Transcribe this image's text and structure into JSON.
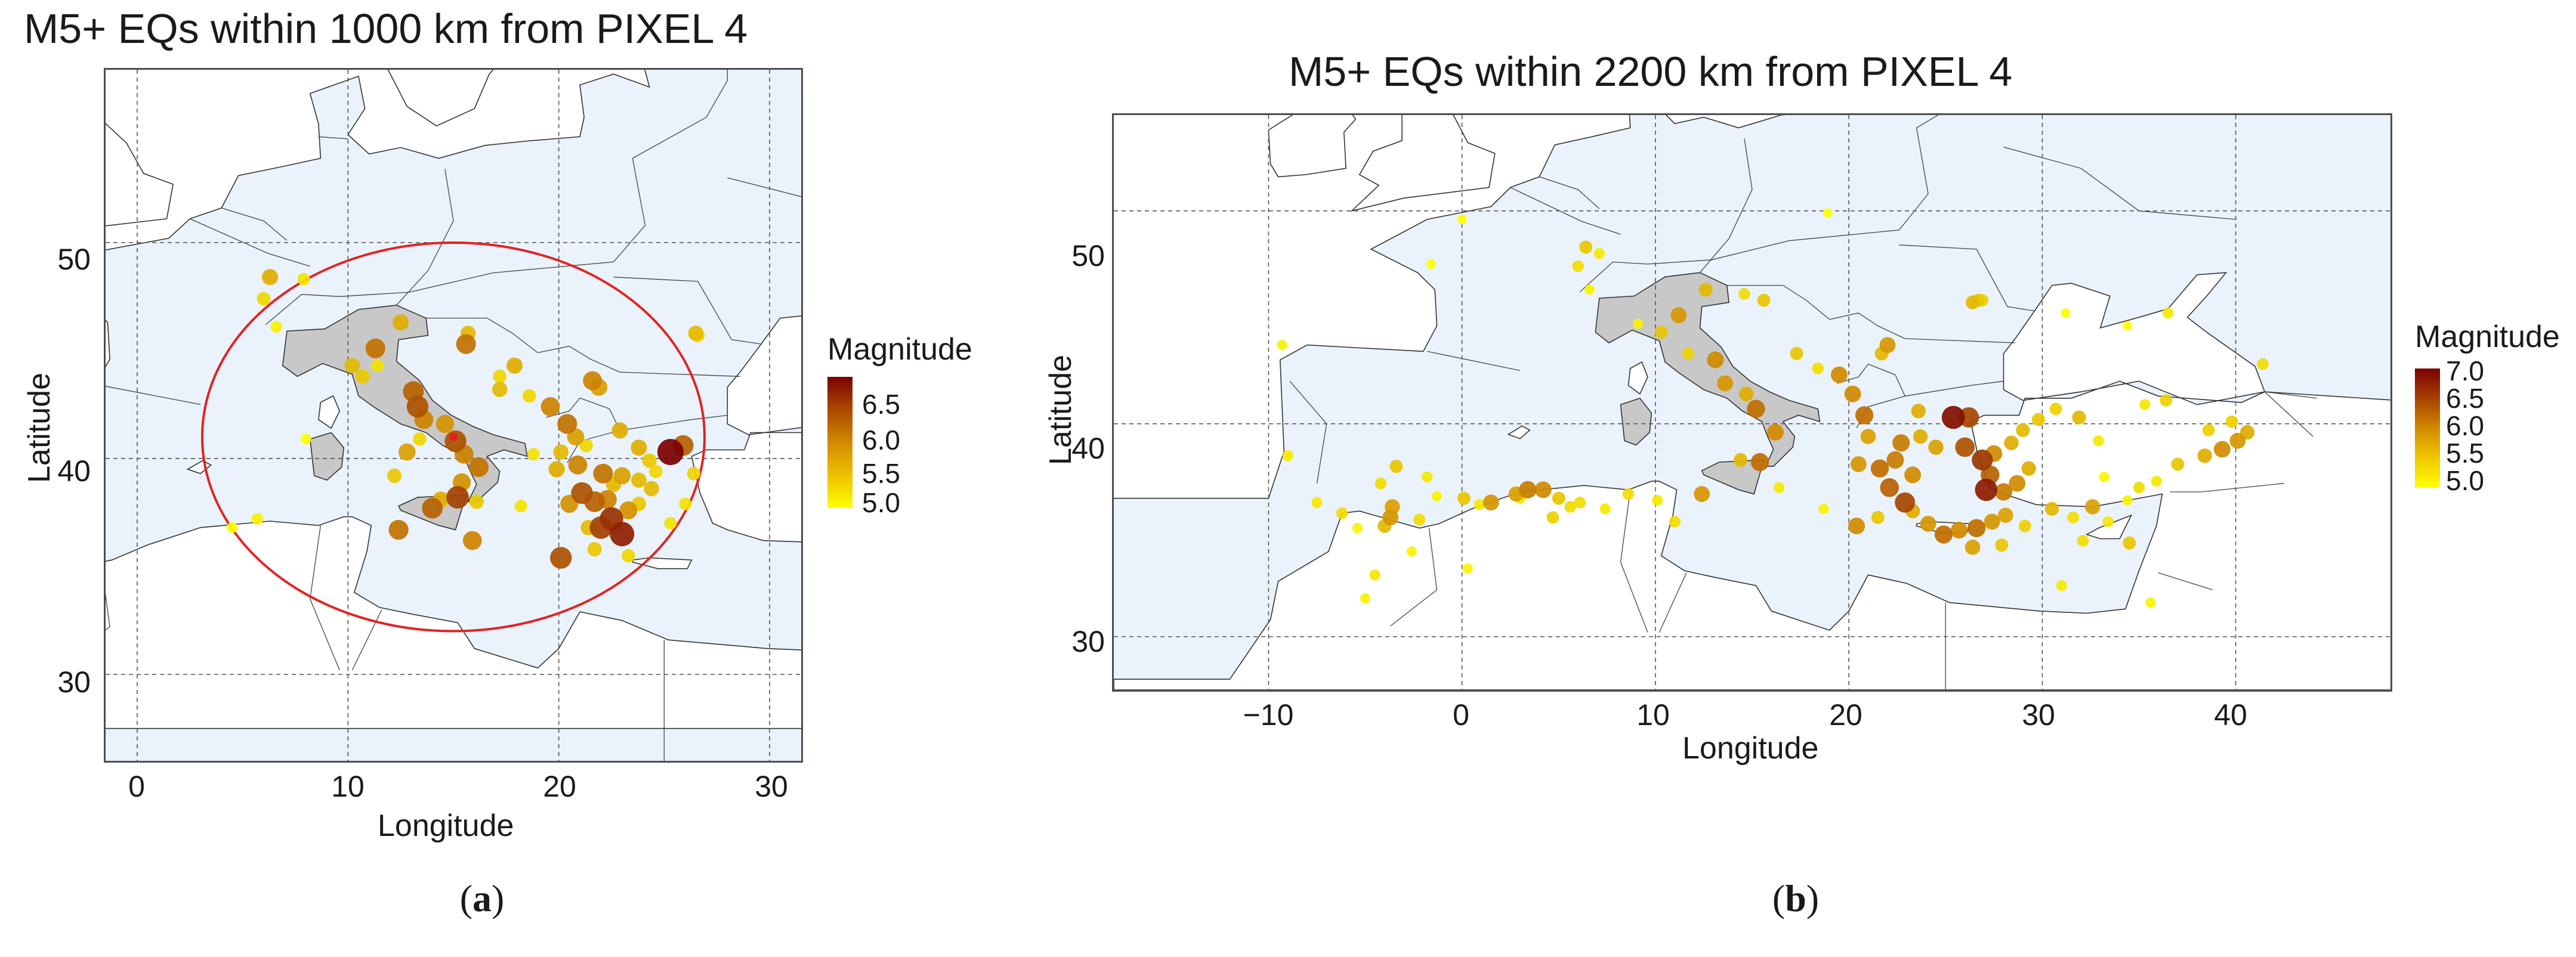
{
  "panel_a": {
    "title": "M5+ EQs within 1000 km from PIXEL 4",
    "xlabel": "Longitude",
    "ylabel": "Latitude",
    "x_ticks": [
      "0",
      "10",
      "20",
      "30"
    ],
    "y_ticks": [
      "30",
      "40",
      "50"
    ],
    "legend_title": "Magnitude",
    "legend_ticks": [
      "6.5",
      "6.0",
      "5.5",
      "5.0"
    ],
    "caption_open": "(",
    "caption_letter": "a",
    "caption_close": ")"
  },
  "panel_b": {
    "title": "M5+ EQs within 2200 km from PIXEL 4",
    "xlabel": "Longitude",
    "ylabel": "Latitude",
    "x_ticks": [
      "−10",
      "0",
      "10",
      "20",
      "30",
      "40"
    ],
    "y_ticks": [
      "30",
      "40",
      "50"
    ],
    "legend_title": "Magnitude",
    "legend_ticks": [
      "7.0",
      "6.5",
      "6.0",
      "5.5",
      "5.0"
    ],
    "caption_open": "(",
    "caption_letter": "b",
    "caption_close": ")"
  },
  "colors": {
    "sea": "#eaf3fb",
    "land": "#ffffff",
    "italy": "#c8c8c8",
    "circle": "#e32222",
    "mag_low": "#ffff00",
    "mag_mid": "#d18a00",
    "mag_high": "#7a0000"
  },
  "chart_data": [
    {
      "type": "scatter",
      "title": "M5+ EQs within 1000 km from PIXEL 4",
      "xlabel": "Longitude",
      "ylabel": "Latitude",
      "xlim": [
        -1.5,
        31.5
      ],
      "ylim": [
        26,
        58
      ],
      "color_scale": {
        "name": "Magnitude",
        "range": [
          5.0,
          6.7
        ]
      },
      "station": {
        "lon": 15.0,
        "lat": 41.0
      },
      "radius_km": 1000,
      "points": [
        [
          6.0,
          47.4,
          5.3
        ],
        [
          6.3,
          48.4,
          5.6
        ],
        [
          7.9,
          48.3,
          5.2
        ],
        [
          6.6,
          46.1,
          5.1
        ],
        [
          8.0,
          40.9,
          5.0
        ],
        [
          10.2,
          44.3,
          5.5
        ],
        [
          11.3,
          45.1,
          6.0
        ],
        [
          12.5,
          46.3,
          5.6
        ],
        [
          10.7,
          43.8,
          5.4
        ],
        [
          11.4,
          44.3,
          5.2
        ],
        [
          13.1,
          43.1,
          6.1
        ],
        [
          13.3,
          42.4,
          6.2
        ],
        [
          13.6,
          41.8,
          5.9
        ],
        [
          14.6,
          41.6,
          5.8
        ],
        [
          15.1,
          40.8,
          6.2
        ],
        [
          15.5,
          40.2,
          5.9
        ],
        [
          16.2,
          39.6,
          6.0
        ],
        [
          15.2,
          38.2,
          6.3
        ],
        [
          15.4,
          38.9,
          5.8
        ],
        [
          14.4,
          38.1,
          5.6
        ],
        [
          12.2,
          39.2,
          5.4
        ],
        [
          12.8,
          40.3,
          5.7
        ],
        [
          13.4,
          40.9,
          5.3
        ],
        [
          14.0,
          37.7,
          6.1
        ],
        [
          12.4,
          36.7,
          6.0
        ],
        [
          15.9,
          36.2,
          5.9
        ],
        [
          16.1,
          38.0,
          5.4
        ],
        [
          15.7,
          45.8,
          5.5
        ],
        [
          15.6,
          45.3,
          6.0
        ],
        [
          17.2,
          43.2,
          5.5
        ],
        [
          18.6,
          42.9,
          5.3
        ],
        [
          17.9,
          44.3,
          5.6
        ],
        [
          19.6,
          42.4,
          5.9
        ],
        [
          20.4,
          41.6,
          6.0
        ],
        [
          20.8,
          41.0,
          5.7
        ],
        [
          21.3,
          40.6,
          5.3
        ],
        [
          20.9,
          39.7,
          5.9
        ],
        [
          19.9,
          39.5,
          5.6
        ],
        [
          21.1,
          38.4,
          6.2
        ],
        [
          20.5,
          37.9,
          5.8
        ],
        [
          21.7,
          38.0,
          6.1
        ],
        [
          22.3,
          38.1,
          5.9
        ],
        [
          22.5,
          37.2,
          6.4
        ],
        [
          22.0,
          36.8,
          6.3
        ],
        [
          23.0,
          36.5,
          6.5
        ],
        [
          23.3,
          37.6,
          5.8
        ],
        [
          23.8,
          37.9,
          5.4
        ],
        [
          22.6,
          38.8,
          5.5
        ],
        [
          22.1,
          39.3,
          6.0
        ],
        [
          23.0,
          39.2,
          5.7
        ],
        [
          24.4,
          38.6,
          5.5
        ],
        [
          24.6,
          39.4,
          5.3
        ],
        [
          23.8,
          40.5,
          5.6
        ],
        [
          24.3,
          39.9,
          5.4
        ],
        [
          25.3,
          40.3,
          6.7
        ],
        [
          25.9,
          40.6,
          6.1
        ],
        [
          26.4,
          39.3,
          5.3
        ],
        [
          26.0,
          37.9,
          5.2
        ],
        [
          23.8,
          39.0,
          5.5
        ],
        [
          21.4,
          36.8,
          5.5
        ],
        [
          20.1,
          35.4,
          6.2
        ],
        [
          21.7,
          35.8,
          5.4
        ],
        [
          23.3,
          35.5,
          5.3
        ],
        [
          21.6,
          43.6,
          5.9
        ],
        [
          21.9,
          43.3,
          5.7
        ],
        [
          25.3,
          37.0,
          5.2
        ],
        [
          26.5,
          45.8,
          5.5
        ],
        [
          26.6,
          45.7,
          5.3
        ],
        [
          5.7,
          37.2,
          5.1
        ],
        [
          4.5,
          36.8,
          5.0
        ],
        [
          18.2,
          37.8,
          5.2
        ],
        [
          22.9,
          41.3,
          5.6
        ],
        [
          20.1,
          40.3,
          5.5
        ],
        [
          18.8,
          40.2,
          5.2
        ],
        [
          17.2,
          43.8,
          5.3
        ]
      ]
    },
    {
      "type": "scatter",
      "title": "M5+ EQs within 2200 km from PIXEL 4",
      "xlabel": "Longitude",
      "ylabel": "Latitude",
      "xlim": [
        -18,
        48
      ],
      "ylim": [
        27.5,
        54.5
      ],
      "color_scale": {
        "name": "Magnitude",
        "range": [
          5.0,
          7.0
        ]
      },
      "points": [
        [
          -9.3,
          43.7,
          5.1
        ],
        [
          -9.0,
          38.5,
          5.2
        ],
        [
          -7.5,
          36.3,
          5.2
        ],
        [
          -6.2,
          35.8,
          5.3
        ],
        [
          -5.4,
          35.1,
          5.1
        ],
        [
          -4.0,
          35.2,
          5.6
        ],
        [
          -3.7,
          35.6,
          5.9
        ],
        [
          -3.6,
          36.1,
          5.8
        ],
        [
          -2.2,
          35.5,
          5.3
        ],
        [
          -2.6,
          34.0,
          5.1
        ],
        [
          -4.2,
          37.2,
          5.3
        ],
        [
          -3.4,
          38.0,
          5.5
        ],
        [
          -1.8,
          37.5,
          5.2
        ],
        [
          -1.3,
          36.6,
          5.1
        ],
        [
          0.1,
          36.5,
          5.5
        ],
        [
          0.9,
          36.2,
          5.2
        ],
        [
          1.5,
          36.3,
          5.9
        ],
        [
          2.8,
          36.7,
          5.8
        ],
        [
          3.4,
          36.9,
          6.1
        ],
        [
          4.2,
          36.9,
          6.0
        ],
        [
          5.0,
          36.5,
          5.5
        ],
        [
          5.6,
          36.1,
          5.3
        ],
        [
          3.0,
          36.5,
          5.2
        ],
        [
          4.7,
          35.6,
          5.4
        ],
        [
          6.1,
          36.3,
          5.3
        ],
        [
          7.4,
          36.0,
          5.2
        ],
        [
          8.6,
          36.7,
          5.3
        ],
        [
          10.1,
          36.4,
          5.2
        ],
        [
          11.0,
          35.4,
          5.3
        ],
        [
          -4.5,
          32.9,
          5.2
        ],
        [
          -5.0,
          31.8,
          5.1
        ],
        [
          0.3,
          33.2,
          5.1
        ],
        [
          6.0,
          47.4,
          5.3
        ],
        [
          6.4,
          48.3,
          5.5
        ],
        [
          7.1,
          48.0,
          5.2
        ],
        [
          -1.6,
          47.5,
          5.0
        ],
        [
          0.0,
          49.6,
          5.0
        ],
        [
          10.3,
          44.3,
          5.5
        ],
        [
          11.2,
          45.1,
          5.9
        ],
        [
          12.6,
          46.3,
          5.6
        ],
        [
          13.1,
          43.0,
          6.0
        ],
        [
          13.6,
          41.9,
          5.9
        ],
        [
          14.7,
          41.4,
          5.7
        ],
        [
          15.2,
          40.7,
          6.2
        ],
        [
          16.2,
          39.6,
          6.0
        ],
        [
          15.4,
          38.2,
          6.2
        ],
        [
          14.4,
          38.3,
          5.6
        ],
        [
          12.4,
          36.7,
          5.9
        ],
        [
          15.6,
          45.8,
          5.5
        ],
        [
          17.3,
          43.3,
          5.5
        ],
        [
          18.4,
          42.6,
          5.3
        ],
        [
          19.5,
          42.3,
          6.0
        ],
        [
          20.2,
          41.4,
          6.0
        ],
        [
          20.8,
          40.4,
          6.2
        ],
        [
          21.0,
          39.4,
          5.8
        ],
        [
          20.5,
          38.1,
          5.9
        ],
        [
          21.6,
          37.9,
          6.2
        ],
        [
          22.4,
          38.3,
          6.1
        ],
        [
          22.1,
          37.0,
          6.3
        ],
        [
          22.9,
          36.3,
          6.5
        ],
        [
          23.3,
          37.6,
          6.0
        ],
        [
          22.7,
          39.1,
          6.1
        ],
        [
          23.7,
          39.4,
          5.7
        ],
        [
          24.5,
          38.9,
          5.8
        ],
        [
          23.6,
          40.6,
          5.7
        ],
        [
          25.4,
          40.3,
          6.9
        ],
        [
          26.2,
          40.3,
          6.5
        ],
        [
          26.0,
          38.9,
          6.4
        ],
        [
          26.9,
          38.3,
          6.6
        ],
        [
          27.3,
          37.6,
          6.3
        ],
        [
          27.1,
          36.9,
          6.8
        ],
        [
          28.0,
          36.8,
          6.1
        ],
        [
          28.7,
          37.2,
          6.0
        ],
        [
          29.3,
          37.9,
          5.7
        ],
        [
          27.5,
          38.6,
          6.0
        ],
        [
          28.4,
          39.1,
          5.7
        ],
        [
          29.0,
          39.7,
          5.6
        ],
        [
          29.8,
          40.2,
          5.5
        ],
        [
          30.7,
          40.7,
          5.4
        ],
        [
          24.9,
          34.8,
          6.2
        ],
        [
          25.7,
          35.0,
          6.0
        ],
        [
          26.6,
          35.1,
          6.2
        ],
        [
          27.4,
          35.4,
          5.9
        ],
        [
          28.1,
          35.7,
          5.8
        ],
        [
          24.1,
          35.3,
          5.9
        ],
        [
          23.3,
          35.9,
          5.7
        ],
        [
          26.4,
          34.2,
          5.8
        ],
        [
          27.9,
          34.3,
          5.5
        ],
        [
          29.1,
          35.2,
          5.4
        ],
        [
          30.5,
          36.0,
          5.6
        ],
        [
          31.6,
          35.6,
          5.3
        ],
        [
          32.1,
          34.5,
          5.3
        ],
        [
          32.6,
          36.1,
          5.8
        ],
        [
          33.4,
          35.4,
          5.2
        ],
        [
          34.4,
          36.4,
          5.1
        ],
        [
          35.0,
          37.0,
          5.3
        ],
        [
          35.9,
          37.3,
          5.2
        ],
        [
          37.0,
          38.1,
          5.5
        ],
        [
          38.4,
          38.5,
          5.7
        ],
        [
          39.3,
          38.8,
          6.0
        ],
        [
          40.1,
          39.2,
          5.9
        ],
        [
          40.6,
          39.6,
          5.7
        ],
        [
          39.8,
          40.1,
          5.4
        ],
        [
          41.4,
          42.8,
          5.3
        ],
        [
          38.6,
          39.7,
          5.4
        ],
        [
          36.4,
          41.1,
          5.4
        ],
        [
          35.3,
          40.9,
          5.2
        ],
        [
          31.9,
          40.3,
          5.6
        ],
        [
          32.9,
          39.2,
          5.2
        ],
        [
          33.2,
          37.5,
          5.1
        ],
        [
          31.0,
          32.4,
          5.2
        ],
        [
          34.5,
          34.4,
          5.5
        ],
        [
          35.6,
          31.6,
          5.1
        ],
        [
          26.4,
          45.7,
          5.6
        ],
        [
          26.7,
          45.8,
          5.5
        ],
        [
          26.9,
          45.8,
          5.4
        ],
        [
          31.2,
          45.2,
          5.0
        ],
        [
          36.5,
          45.2,
          5.2
        ],
        [
          34.4,
          44.6,
          5.0
        ],
        [
          22.0,
          43.7,
          5.9
        ],
        [
          21.7,
          43.3,
          5.6
        ],
        [
          18.9,
          49.9,
          5.0
        ],
        [
          14.6,
          46.1,
          5.3
        ],
        [
          11.7,
          43.3,
          5.4
        ],
        [
          9.1,
          44.7,
          5.1
        ],
        [
          6.6,
          46.3,
          5.1
        ],
        [
          20.4,
          35.2,
          6.0
        ],
        [
          21.5,
          35.6,
          5.5
        ],
        [
          16.4,
          37.0,
          5.2
        ],
        [
          18.7,
          36.0,
          5.1
        ]
      ]
    }
  ]
}
